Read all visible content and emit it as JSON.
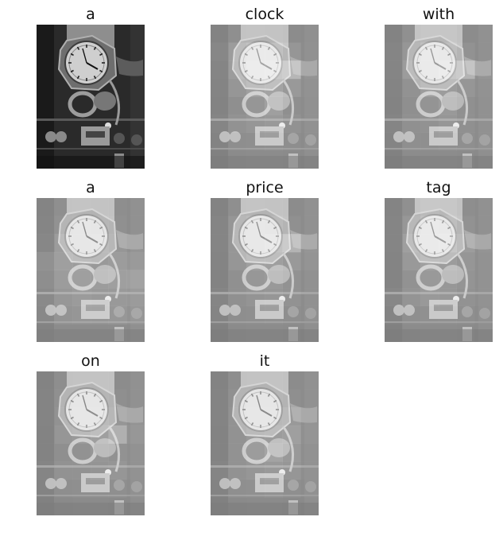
{
  "figure": {
    "panels": [
      {
        "word": "a",
        "type": "original"
      },
      {
        "word": "clock",
        "type": "attention",
        "attention": [
          [
            0.05,
            0.1,
            0.12,
            0.1,
            0.05,
            0.04
          ],
          [
            0.1,
            0.3,
            0.45,
            0.4,
            0.2,
            0.06
          ],
          [
            0.08,
            0.3,
            0.55,
            0.6,
            0.7,
            0.1
          ],
          [
            0.06,
            0.2,
            0.35,
            0.4,
            0.25,
            0.08
          ],
          [
            0.05,
            0.1,
            0.2,
            0.35,
            0.1,
            0.05
          ],
          [
            0.08,
            0.15,
            0.2,
            0.25,
            0.15,
            0.05
          ],
          [
            0.05,
            0.08,
            0.1,
            0.12,
            0.08,
            0.04
          ],
          [
            0.02,
            0.04,
            0.06,
            0.06,
            0.04,
            0.02
          ]
        ]
      },
      {
        "word": "with",
        "type": "attention",
        "attention": [
          [
            0.05,
            0.12,
            0.2,
            0.18,
            0.06,
            0.05
          ],
          [
            0.08,
            0.2,
            0.4,
            0.35,
            0.15,
            0.06
          ],
          [
            0.08,
            0.3,
            0.4,
            0.55,
            0.65,
            0.12
          ],
          [
            0.06,
            0.15,
            0.3,
            0.3,
            0.2,
            0.08
          ],
          [
            0.05,
            0.1,
            0.18,
            0.25,
            0.12,
            0.05
          ],
          [
            0.08,
            0.12,
            0.15,
            0.2,
            0.12,
            0.05
          ],
          [
            0.06,
            0.1,
            0.1,
            0.12,
            0.1,
            0.05
          ],
          [
            0.02,
            0.05,
            0.06,
            0.06,
            0.04,
            0.02
          ]
        ]
      },
      {
        "word": "a",
        "type": "attention",
        "attention": [
          [
            0.06,
            0.1,
            0.12,
            0.1,
            0.08,
            0.06
          ],
          [
            0.08,
            0.15,
            0.2,
            0.18,
            0.12,
            0.06
          ],
          [
            0.1,
            0.3,
            0.25,
            0.28,
            0.2,
            0.1
          ],
          [
            0.25,
            0.35,
            0.3,
            0.25,
            0.3,
            0.2
          ],
          [
            0.2,
            0.3,
            0.35,
            0.3,
            0.35,
            0.35
          ],
          [
            0.15,
            0.22,
            0.28,
            0.25,
            0.25,
            0.22
          ],
          [
            0.12,
            0.18,
            0.2,
            0.2,
            0.22,
            0.15
          ],
          [
            0.04,
            0.06,
            0.06,
            0.06,
            0.06,
            0.04
          ]
        ]
      },
      {
        "word": "price",
        "type": "attention",
        "attention": [
          [
            0.05,
            0.1,
            0.12,
            0.1,
            0.06,
            0.05
          ],
          [
            0.08,
            0.2,
            0.3,
            0.25,
            0.12,
            0.06
          ],
          [
            0.08,
            0.2,
            0.3,
            0.45,
            0.65,
            0.12
          ],
          [
            0.06,
            0.2,
            0.35,
            0.35,
            0.25,
            0.1
          ],
          [
            0.05,
            0.12,
            0.22,
            0.25,
            0.15,
            0.06
          ],
          [
            0.08,
            0.12,
            0.18,
            0.2,
            0.15,
            0.06
          ],
          [
            0.06,
            0.08,
            0.1,
            0.12,
            0.08,
            0.05
          ],
          [
            0.02,
            0.04,
            0.06,
            0.06,
            0.04,
            0.02
          ]
        ]
      },
      {
        "word": "tag",
        "type": "attention",
        "attention": [
          [
            0.06,
            0.12,
            0.25,
            0.2,
            0.08,
            0.06
          ],
          [
            0.08,
            0.22,
            0.4,
            0.35,
            0.15,
            0.06
          ],
          [
            0.08,
            0.35,
            0.45,
            0.5,
            0.3,
            0.1
          ],
          [
            0.06,
            0.25,
            0.35,
            0.3,
            0.2,
            0.08
          ],
          [
            0.06,
            0.15,
            0.25,
            0.22,
            0.18,
            0.08
          ],
          [
            0.1,
            0.18,
            0.25,
            0.22,
            0.15,
            0.08
          ],
          [
            0.06,
            0.1,
            0.12,
            0.12,
            0.1,
            0.05
          ],
          [
            0.02,
            0.05,
            0.06,
            0.06,
            0.04,
            0.02
          ]
        ]
      },
      {
        "word": "on",
        "type": "attention",
        "attention": [
          [
            0.05,
            0.08,
            0.1,
            0.1,
            0.06,
            0.05
          ],
          [
            0.06,
            0.12,
            0.15,
            0.15,
            0.1,
            0.06
          ],
          [
            0.06,
            0.15,
            0.2,
            0.25,
            0.2,
            0.1
          ],
          [
            0.05,
            0.2,
            0.25,
            0.35,
            0.6,
            0.15
          ],
          [
            0.05,
            0.1,
            0.15,
            0.2,
            0.15,
            0.08
          ],
          [
            0.08,
            0.15,
            0.15,
            0.18,
            0.2,
            0.08
          ],
          [
            0.05,
            0.08,
            0.1,
            0.1,
            0.1,
            0.05
          ],
          [
            0.02,
            0.03,
            0.04,
            0.04,
            0.03,
            0.02
          ]
        ]
      },
      {
        "word": "it",
        "type": "attention",
        "attention": [
          [
            0.05,
            0.08,
            0.1,
            0.1,
            0.06,
            0.05
          ],
          [
            0.06,
            0.12,
            0.15,
            0.15,
            0.1,
            0.06
          ],
          [
            0.06,
            0.15,
            0.2,
            0.22,
            0.25,
            0.1
          ],
          [
            0.05,
            0.15,
            0.25,
            0.3,
            0.35,
            0.12
          ],
          [
            0.05,
            0.15,
            0.3,
            0.4,
            0.25,
            0.08
          ],
          [
            0.08,
            0.15,
            0.2,
            0.25,
            0.2,
            0.08
          ],
          [
            0.05,
            0.1,
            0.12,
            0.15,
            0.1,
            0.05
          ],
          [
            0.02,
            0.03,
            0.04,
            0.04,
            0.03,
            0.02
          ]
        ]
      }
    ]
  }
}
